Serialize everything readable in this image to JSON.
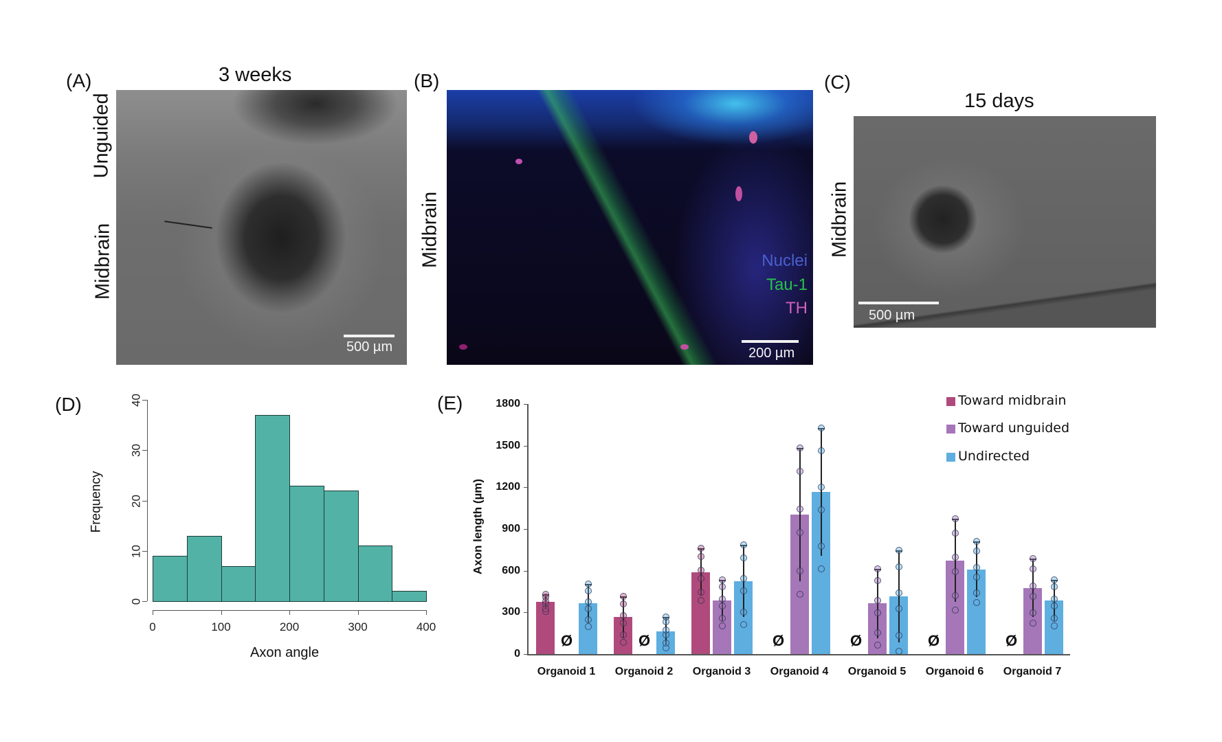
{
  "panels": {
    "A": {
      "label": "(A)",
      "title": "3 weeks",
      "side_labels": [
        "Unguided",
        "Midbrain"
      ],
      "scale_bar": "500 µm"
    },
    "B": {
      "label": "(B)",
      "side_label": "Midbrain",
      "channels": [
        {
          "name": "Nuclei",
          "color": "#4a5fd0"
        },
        {
          "name": "Tau-1",
          "color": "#27c24a"
        },
        {
          "name": "TH",
          "color": "#d060c0"
        }
      ],
      "scale_bar": "200 µm"
    },
    "C": {
      "label": "(C)",
      "title": "15 days",
      "side_label": "Midbrain",
      "scale_bar": "500 µm"
    },
    "D": {
      "label": "(D)"
    },
    "E": {
      "label": "(E)",
      "empty_symbol": "Ø"
    }
  },
  "chart_data": [
    {
      "type": "bar",
      "subtype": "histogram",
      "panel": "D",
      "title": "",
      "xlabel": "Axon angle",
      "ylabel": "Frequency",
      "bin_edges": [
        0,
        50,
        100,
        150,
        200,
        250,
        300,
        350,
        400
      ],
      "values": [
        9,
        13,
        7,
        37,
        23,
        22,
        11,
        2
      ],
      "xticks": [
        "0",
        "100",
        "200",
        "300",
        "400"
      ],
      "yticks": [
        "0",
        "10",
        "20",
        "30",
        "40"
      ],
      "xlim": [
        0,
        400
      ],
      "ylim": [
        0,
        40
      ],
      "grid": false,
      "color": "#52b2a6"
    },
    {
      "type": "bar",
      "panel": "E",
      "title": "",
      "xlabel": "",
      "ylabel": "Axon length (µm)",
      "categories": [
        "Organoid 1",
        "Organoid 2",
        "Organoid 3",
        "Organoid 4",
        "Organoid 5",
        "Organoid 6",
        "Organoid 7"
      ],
      "series": [
        {
          "name": "Toward midbrain",
          "color": "#b04a7c",
          "values": [
            375,
            265,
            590,
            null,
            null,
            null,
            null
          ]
        },
        {
          "name": "Toward unguided",
          "color": "#a576b8",
          "values": [
            null,
            null,
            385,
            1005,
            365,
            675,
            475
          ]
        },
        {
          "name": "Undirected",
          "color": "#5eaee0",
          "values": [
            365,
            165,
            525,
            1165,
            415,
            610,
            385
          ]
        }
      ],
      "empty_markers": "Ø shown where no axons: Toward unguided for Organoid 1, 2; Toward midbrain for Organoid 4, 5, 6, 7",
      "yticks": [
        "0",
        "300",
        "600",
        "900",
        "1200",
        "1500",
        "1800"
      ],
      "ylim": [
        0,
        1800
      ],
      "grid": false,
      "legend_position": "upper right",
      "error_bars": true,
      "individual_points": true
    }
  ]
}
